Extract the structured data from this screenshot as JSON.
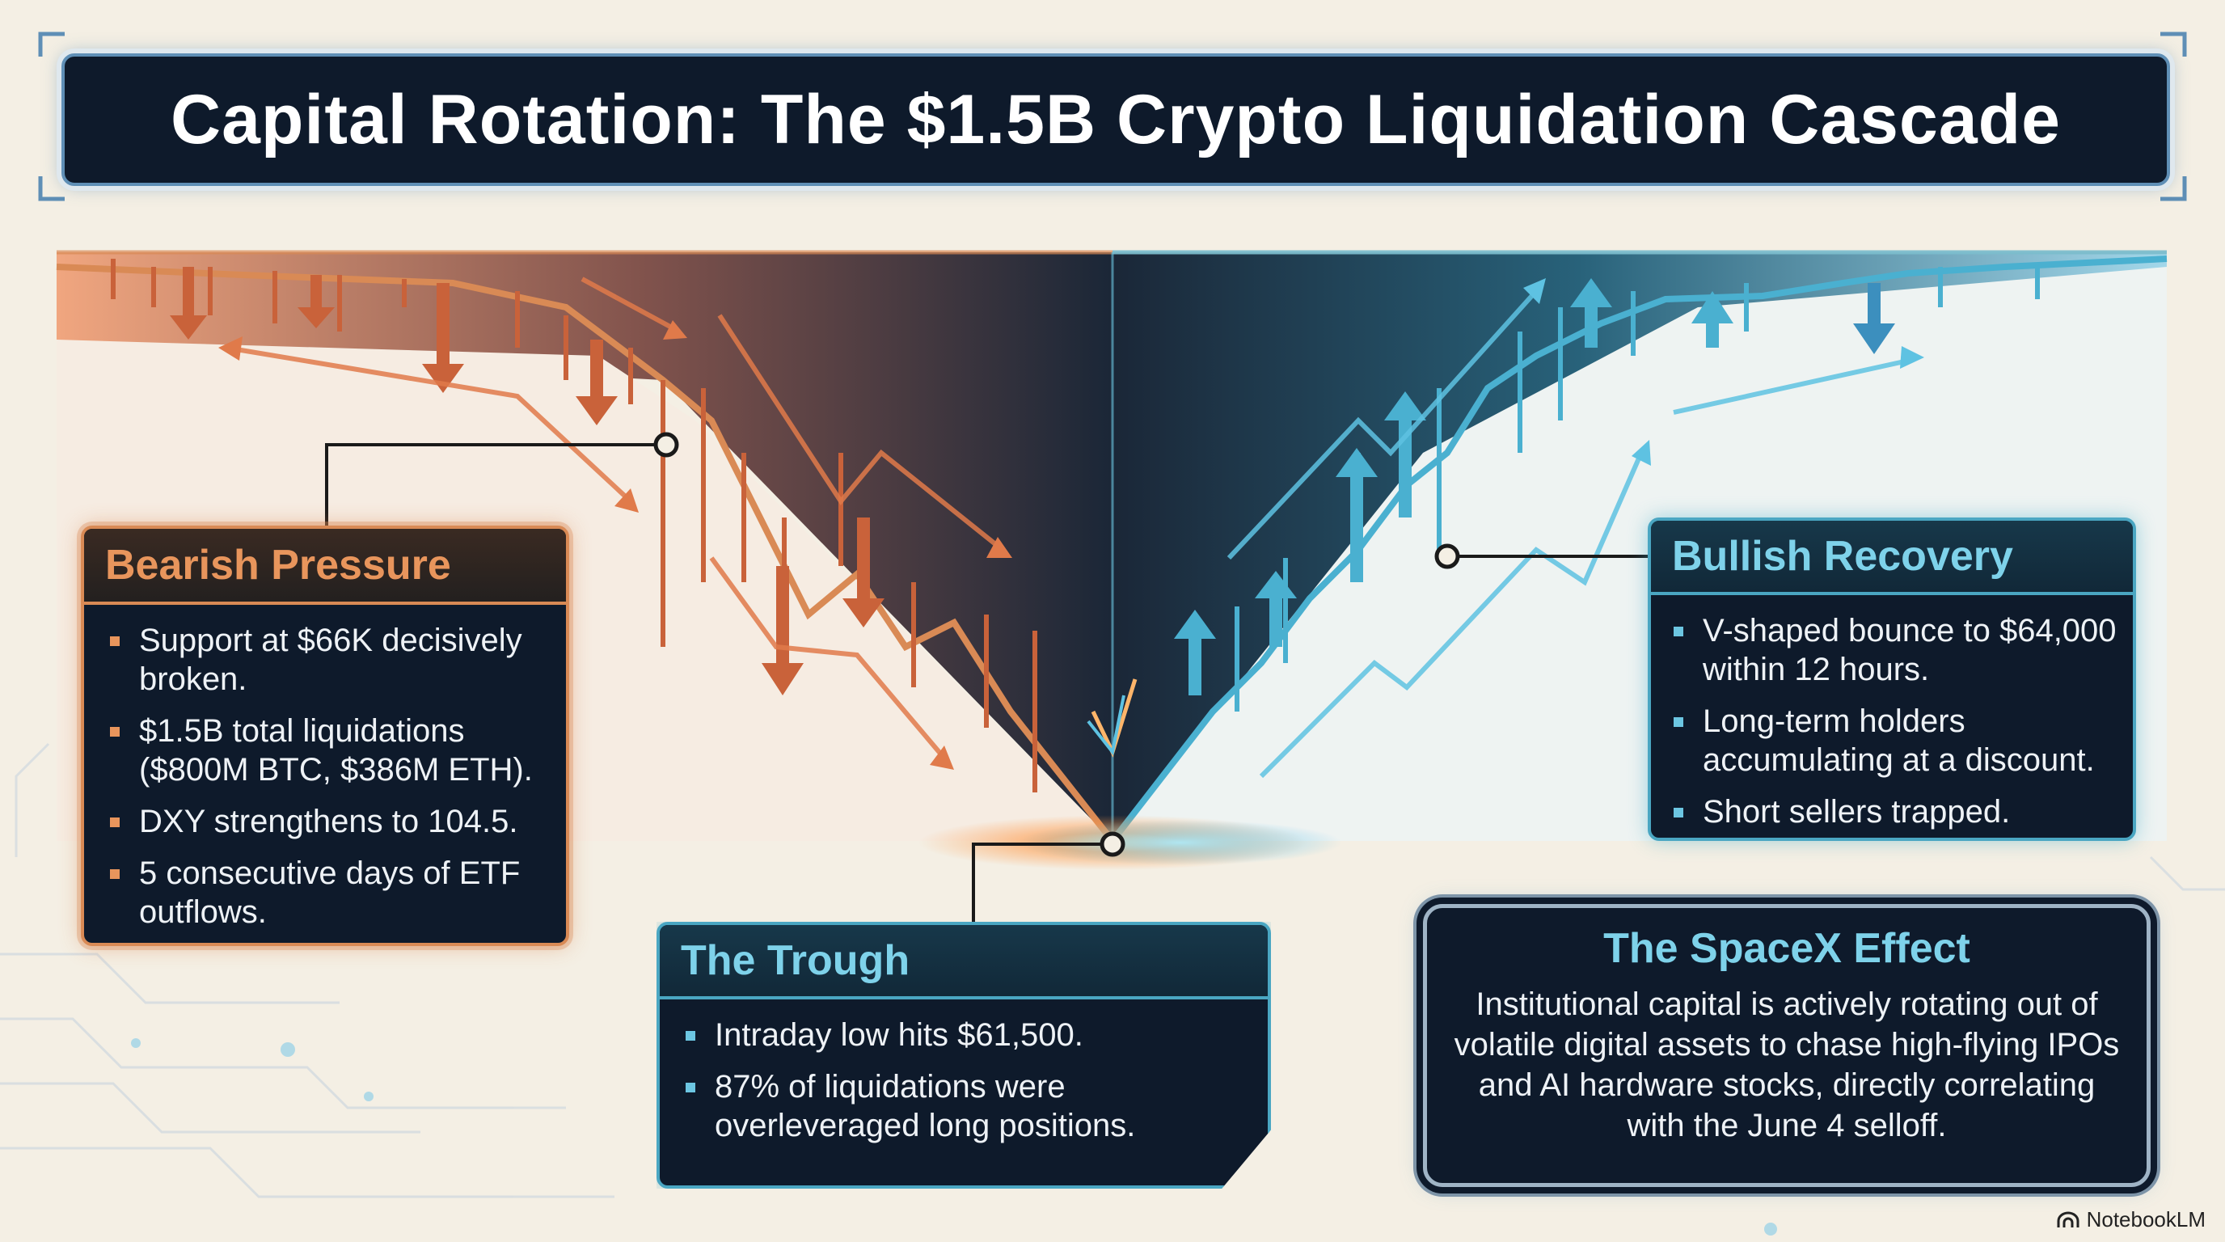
{
  "title": "Capital Rotation: The $1.5B Crypto Liquidation Cascade",
  "colors": {
    "background": "#f4efe4",
    "panel": "#0e1a2b",
    "bearish_accent": "#e8955c",
    "bullish_accent": "#7ed2ea"
  },
  "bearish": {
    "heading": "Bearish Pressure",
    "points": [
      "Support at $66K decisively broken.",
      "$1.5B total liquidations ($800M BTC, $386M ETH).",
      "DXY strengthens to 104.5.",
      "5 consecutive days of ETF outflows."
    ]
  },
  "trough": {
    "heading": "The Trough",
    "points": [
      "Intraday low hits $61,500.",
      "87% of liquidations were overleveraged long positions."
    ]
  },
  "bullish": {
    "heading": "Bullish Recovery",
    "points": [
      "V-shaped bounce to $64,000 within 12 hours.",
      "Long-term holders accumulating at a discount.",
      "Short sellers trapped."
    ]
  },
  "spacex": {
    "heading": "The SpaceX Effect",
    "body": "Institutional capital is actively rotating out of volatile digital assets to chase high-flying IPOs and AI hardware stocks, directly correlating with the June 4 selloff."
  },
  "footer": {
    "brand": "NotebookLM",
    "brand_icon": "notebooklm-logo-icon"
  }
}
